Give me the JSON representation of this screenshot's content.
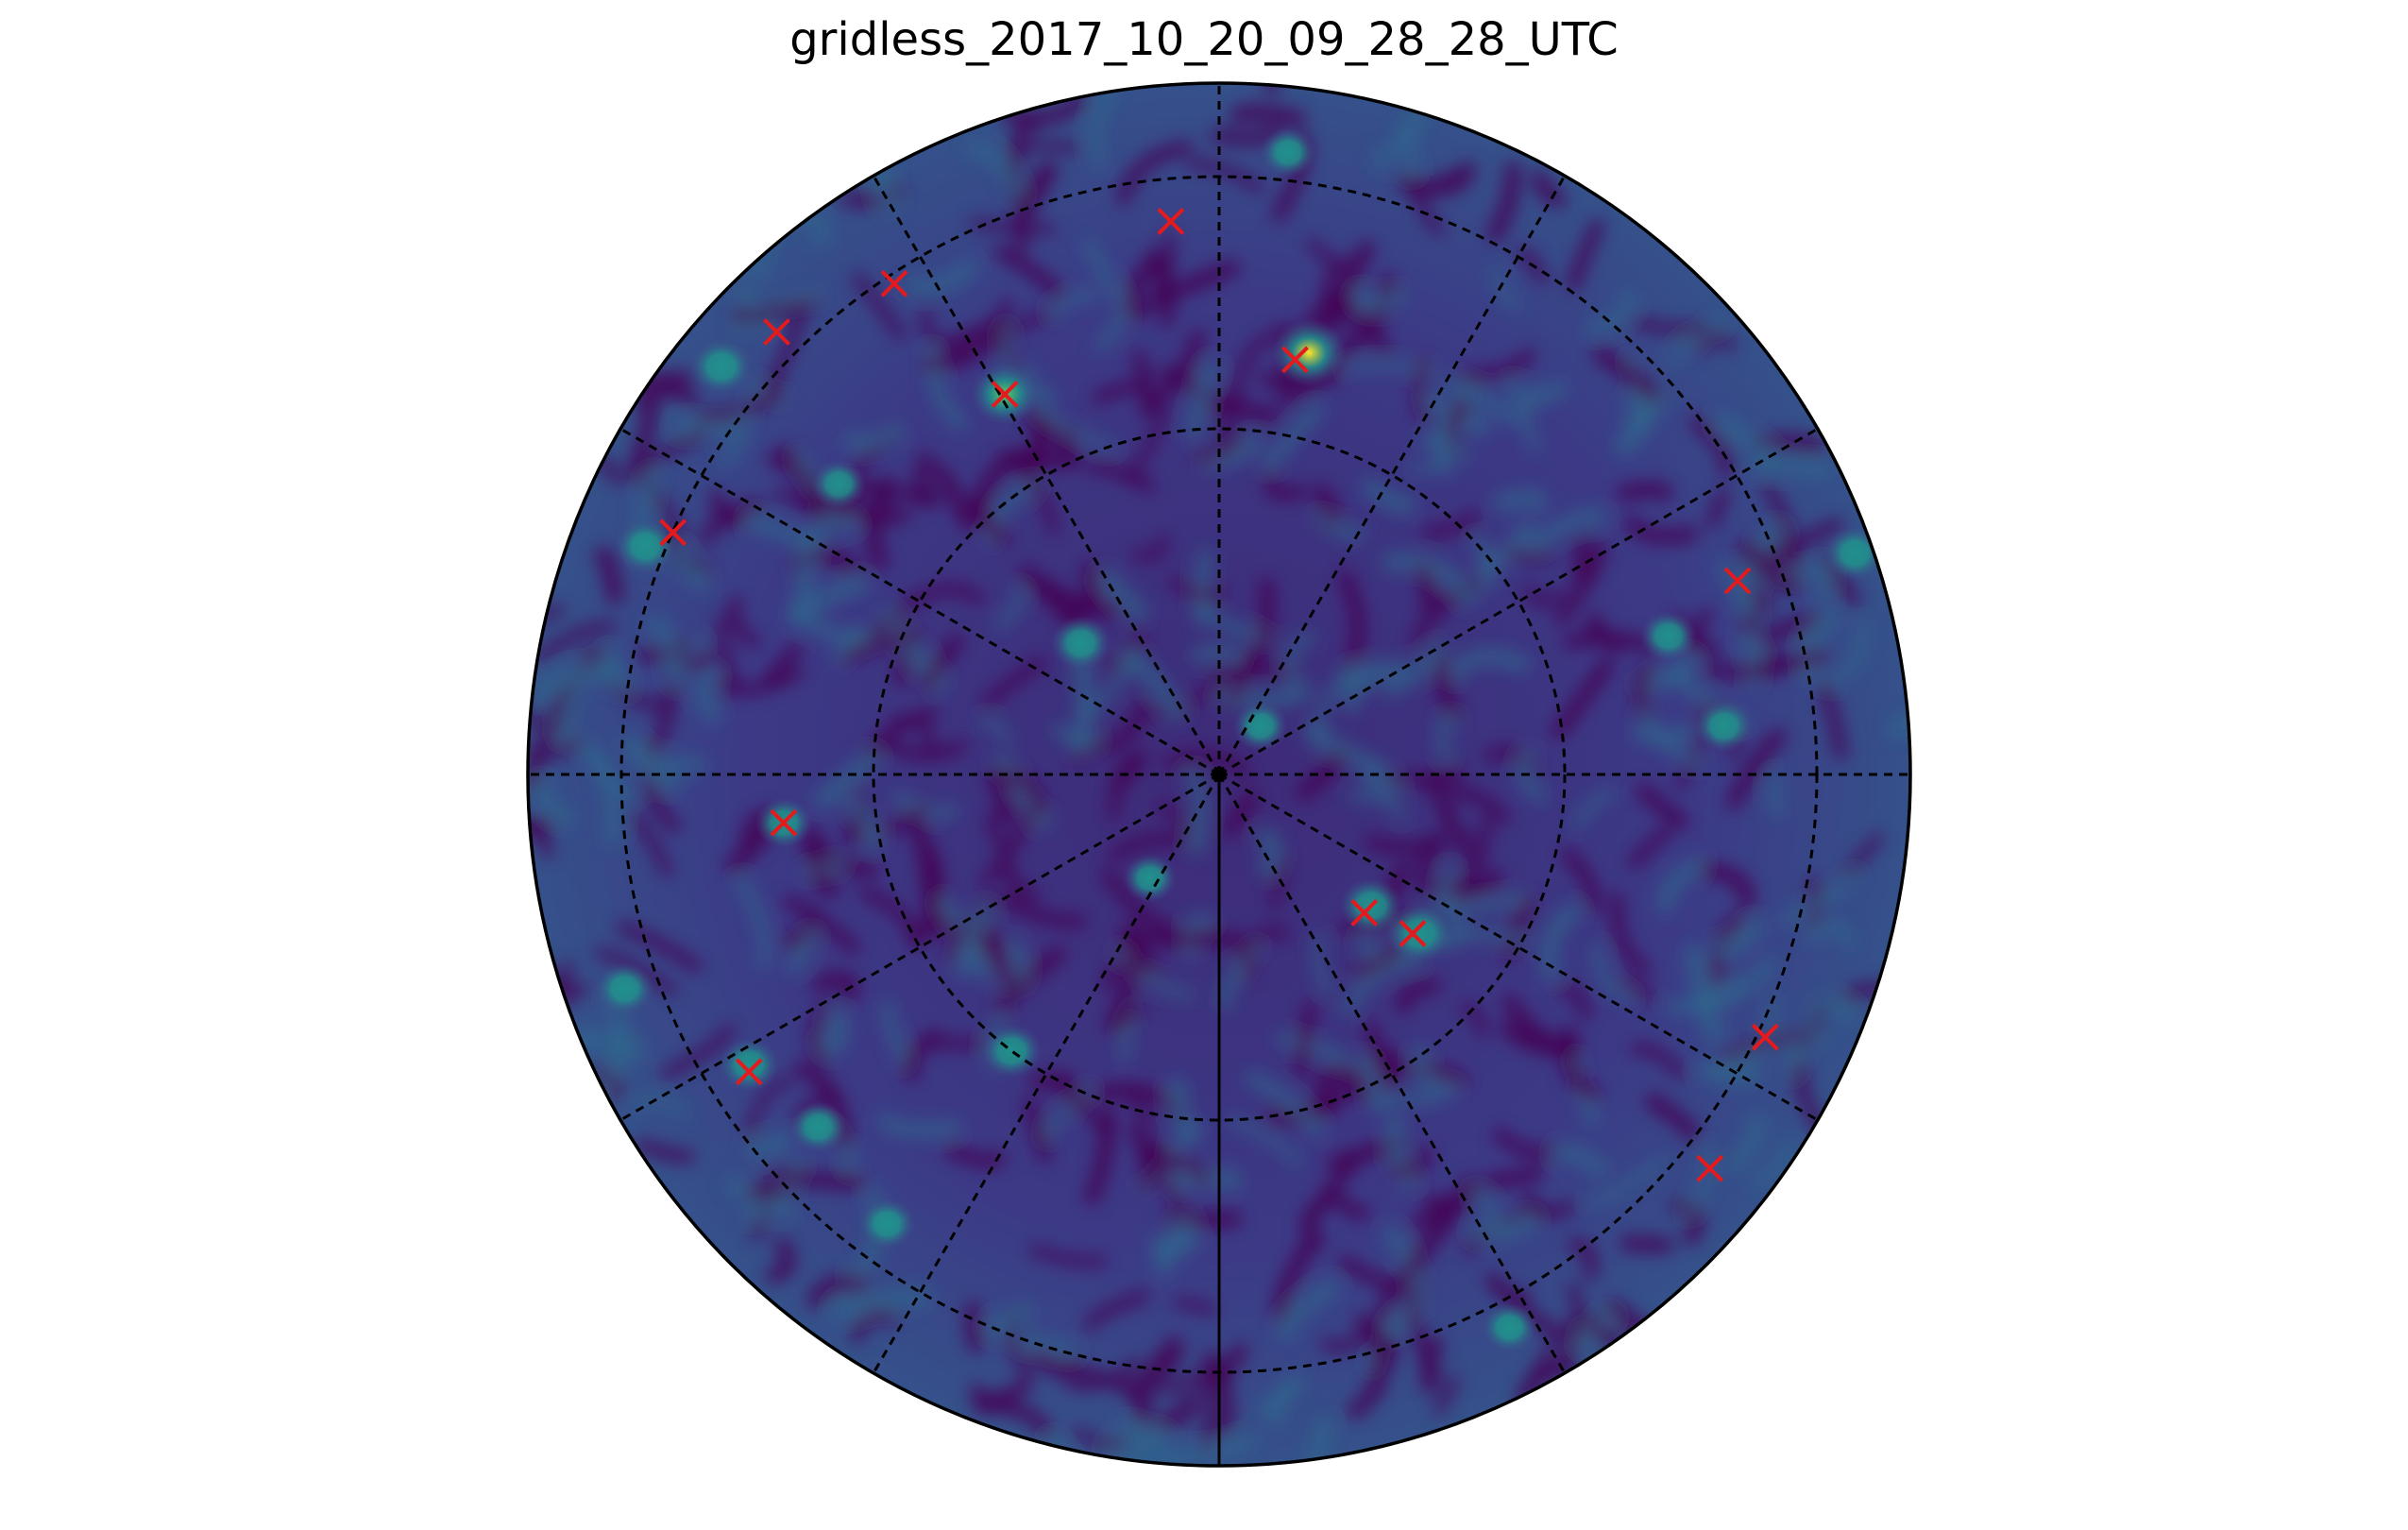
{
  "title": "gridless_2017_10_20_09_28_28_UTC",
  "colors": {
    "background_low": "#440154",
    "background_mid": "#3b528b",
    "hot_mid": "#21918c",
    "hot_high": "#5ec962",
    "hot_peak": "#fde725",
    "marker": "#e41a1c",
    "grid": "#000000"
  },
  "chart_data": {
    "type": "scatter",
    "projection": "polar",
    "colormap": "viridis",
    "grid": true,
    "radial_grid_rings": 3,
    "azimuth_grid_step_deg": 30,
    "marker_symbol": "x",
    "points": [
      {
        "x": -0.07,
        "y": 0.8
      },
      {
        "x": 0.11,
        "y": 0.6
      },
      {
        "x": -0.47,
        "y": 0.71
      },
      {
        "x": -0.64,
        "y": 0.64
      },
      {
        "x": -0.31,
        "y": 0.55
      },
      {
        "x": -0.79,
        "y": 0.35
      },
      {
        "x": 0.75,
        "y": 0.28
      },
      {
        "x": -0.63,
        "y": -0.07
      },
      {
        "x": 0.21,
        "y": -0.2
      },
      {
        "x": 0.28,
        "y": -0.23
      },
      {
        "x": 0.79,
        "y": -0.38
      },
      {
        "x": -0.68,
        "y": -0.43
      },
      {
        "x": 0.71,
        "y": -0.57
      }
    ],
    "blobs": [
      {
        "x": 0.13,
        "y": 0.61,
        "level": 1.0
      },
      {
        "x": -0.31,
        "y": 0.55,
        "level": 0.8
      },
      {
        "x": -0.72,
        "y": 0.59,
        "level": 0.6
      },
      {
        "x": -0.83,
        "y": 0.33,
        "level": 0.55
      },
      {
        "x": -0.2,
        "y": 0.19,
        "level": 0.55
      },
      {
        "x": 0.22,
        "y": -0.19,
        "level": 0.62
      },
      {
        "x": 0.29,
        "y": -0.23,
        "level": 0.68
      },
      {
        "x": -0.63,
        "y": -0.07,
        "level": 0.45
      },
      {
        "x": -0.68,
        "y": -0.42,
        "level": 0.55
      },
      {
        "x": -0.3,
        "y": -0.4,
        "level": 0.55
      },
      {
        "x": 0.92,
        "y": 0.32,
        "level": 0.55
      },
      {
        "x": 0.73,
        "y": 0.07,
        "level": 0.5
      },
      {
        "x": -0.86,
        "y": -0.31,
        "level": 0.5
      },
      {
        "x": -0.48,
        "y": -0.65,
        "level": 0.45
      },
      {
        "x": -0.58,
        "y": -0.51,
        "level": 0.45
      },
      {
        "x": 0.1,
        "y": 0.9,
        "level": 0.4
      },
      {
        "x": -0.55,
        "y": 0.42,
        "level": 0.4
      },
      {
        "x": 0.65,
        "y": 0.2,
        "level": 0.45
      },
      {
        "x": 0.42,
        "y": -0.8,
        "level": 0.4
      },
      {
        "x": -0.1,
        "y": -0.15,
        "level": 0.35
      },
      {
        "x": 0.06,
        "y": 0.07,
        "level": 0.4
      }
    ]
  }
}
